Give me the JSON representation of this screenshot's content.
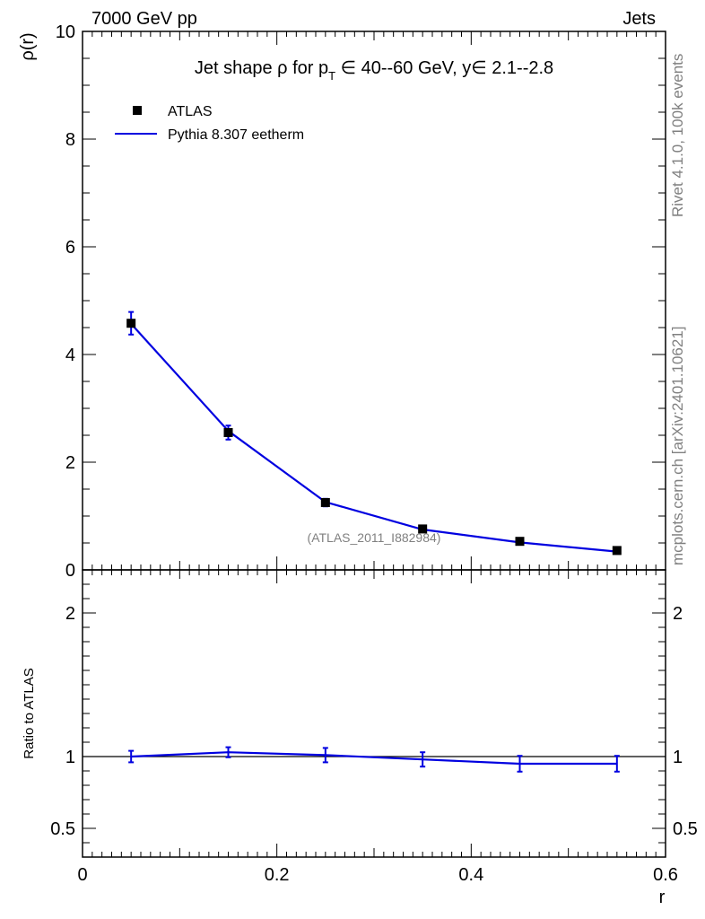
{
  "header": {
    "left": "7000 GeV pp",
    "right": "Jets"
  },
  "side_text": {
    "rivet": "Rivet 4.1.0,  100k events",
    "mcplots": "mcplots.cern.ch [arXiv:2401.10621]"
  },
  "colors": {
    "mc": "#0000e0",
    "data": "#000000",
    "watermark": "#808080"
  },
  "chart_data": [
    {
      "type": "line",
      "panel": "main",
      "title": "Jet shape ρ for p_T ∈ 40--60 GeV, y ∈ 2.1--2.8",
      "title_parts": {
        "pre": "Jet shape ρ for p",
        "sub": "T",
        "post": " ∈ 40--60 GeV, y∈ 2.1--2.8"
      },
      "ylabel": "ρ(r)",
      "xlabel": "r",
      "xlim": [
        0,
        0.6
      ],
      "ylim": [
        0,
        10
      ],
      "y_ticks": [
        0,
        2,
        4,
        6,
        8,
        10
      ],
      "y_tick_labels": [
        "0",
        "2",
        "4",
        "6",
        "8",
        "10"
      ],
      "watermark": "(ATLAS_2011_I882984)",
      "legend": {
        "placement": "top-left",
        "entries": [
          "ATLAS",
          "Pythia 8.307 eetherm"
        ]
      },
      "series": [
        {
          "name": "ATLAS",
          "style": "markers",
          "x": [
            0.05,
            0.15,
            0.25,
            0.35,
            0.45,
            0.55
          ],
          "values": [
            4.58,
            2.55,
            1.25,
            0.76,
            0.53,
            0.36
          ],
          "err": [
            0.21,
            0.13,
            0.07,
            0.05,
            0.04,
            0.03
          ]
        },
        {
          "name": "Pythia 8.307 eetherm",
          "style": "line",
          "x": [
            0.05,
            0.15,
            0.25,
            0.35,
            0.45,
            0.55
          ],
          "values": [
            4.57,
            2.58,
            1.26,
            0.75,
            0.51,
            0.34
          ]
        }
      ]
    },
    {
      "type": "line",
      "panel": "ratio",
      "ylabel": "Ratio to ATLAS",
      "xlabel": "r",
      "xlim": [
        0,
        0.6
      ],
      "ylim": [
        0.3,
        2.3
      ],
      "y_ticks": [
        0.5,
        1,
        2
      ],
      "y_tick_labels": [
        "0.5",
        "1",
        "2"
      ],
      "x_ticks": [
        0,
        0.2,
        0.4,
        0.6
      ],
      "x_tick_labels": [
        "0",
        "0.2",
        "0.4",
        "0.6"
      ],
      "reference": 1,
      "series": [
        {
          "name": "Pythia 8.307 eetherm / ATLAS",
          "x": [
            0.05,
            0.15,
            0.25,
            0.35,
            0.45,
            0.55
          ],
          "values": [
            1.0,
            1.03,
            1.01,
            0.98,
            0.95,
            0.95
          ],
          "err": [
            0.04,
            0.035,
            0.05,
            0.05,
            0.055,
            0.055
          ]
        }
      ]
    }
  ]
}
